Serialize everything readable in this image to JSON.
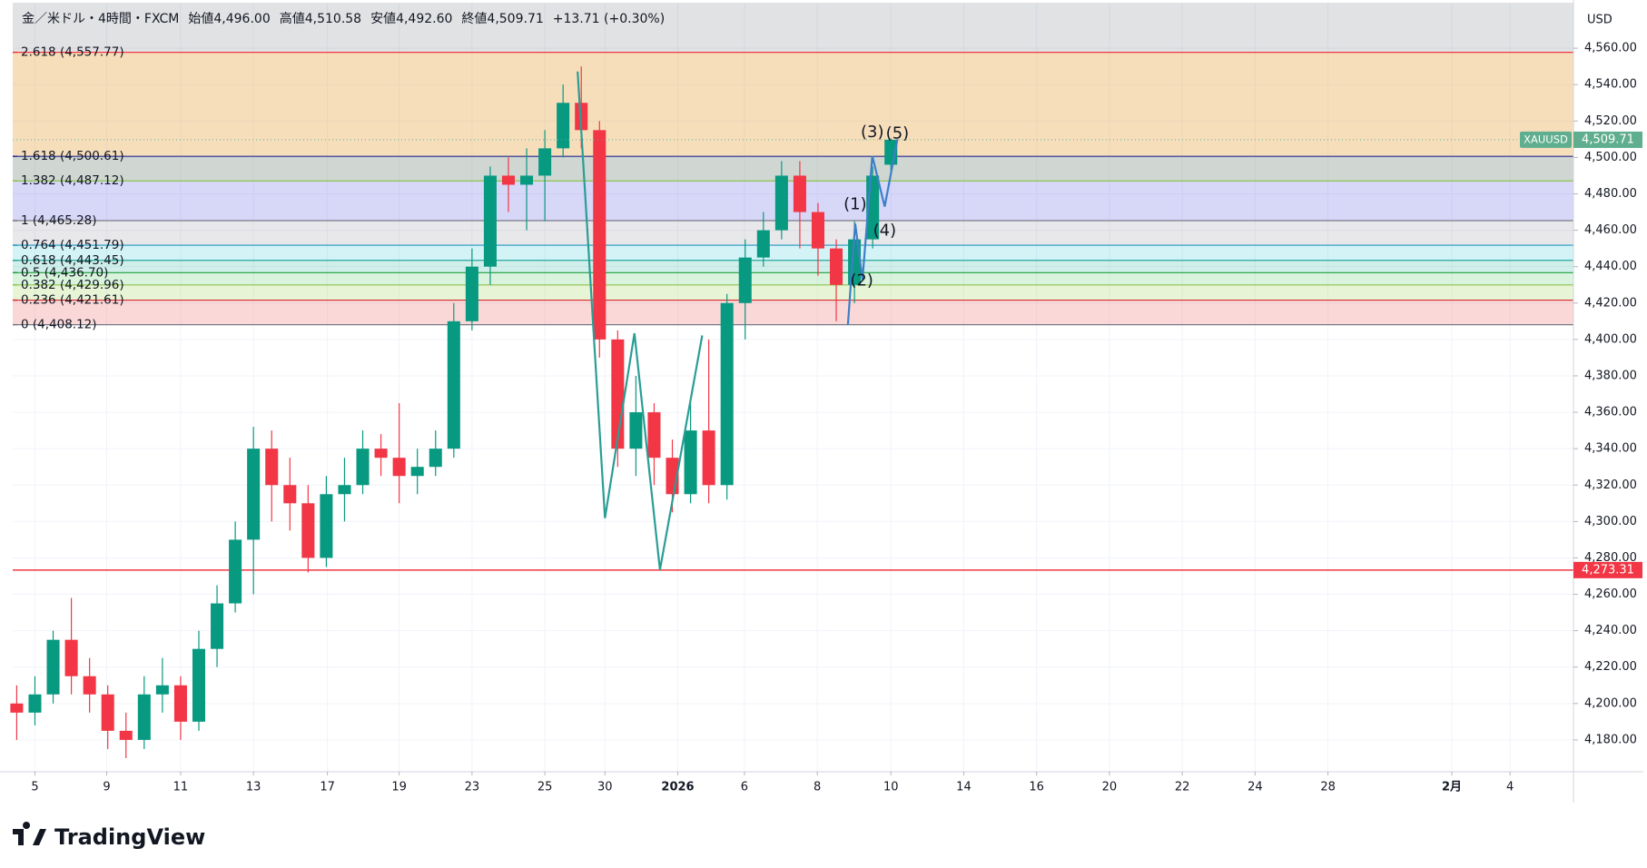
{
  "header": [
    "金／米ドル・4時間・FXCM",
    "始値4,496.00",
    "高値4,510.58",
    "安値4,492.60",
    "終値4,509.71",
    "+13.71 (+0.30%)"
  ],
  "currency": "USD",
  "brand": "TradingView",
  "chart_data": {
    "type": "candlestick",
    "up_color": "#089981",
    "down_color": "#f23645",
    "grid": true,
    "xlim": [
      -0.61,
      42.24
    ],
    "ylim": [
      4162.5,
      4585
    ],
    "xticks": [
      {
        "value": 0,
        "label": "5"
      },
      {
        "value": 1.97,
        "label": "9"
      },
      {
        "value": 4,
        "label": "11"
      },
      {
        "value": 6,
        "label": "13"
      },
      {
        "value": 8.03,
        "label": "17"
      },
      {
        "value": 10,
        "label": "19"
      },
      {
        "value": 12,
        "label": "23"
      },
      {
        "value": 14,
        "label": "25"
      },
      {
        "value": 15.65,
        "label": "30"
      },
      {
        "value": 17.65,
        "label": "2026"
      },
      {
        "value": 19.48,
        "label": "6"
      },
      {
        "value": 21.48,
        "label": "8"
      },
      {
        "value": 23.5,
        "label": "10"
      },
      {
        "value": 25.5,
        "label": "14"
      },
      {
        "value": 27.5,
        "label": "16"
      },
      {
        "value": 29.5,
        "label": "20"
      },
      {
        "value": 31.5,
        "label": "22"
      },
      {
        "value": 33.5,
        "label": "24"
      },
      {
        "value": 35.5,
        "label": "28"
      },
      {
        "value": 38.9,
        "label": "2月"
      },
      {
        "value": 40.5,
        "label": "4"
      }
    ],
    "yticks": [
      {
        "value": 4180,
        "label": "4,180.00"
      },
      {
        "value": 4200,
        "label": "4,200.00"
      },
      {
        "value": 4220,
        "label": "4,220.00"
      },
      {
        "value": 4240,
        "label": "4,240.00"
      },
      {
        "value": 4260,
        "label": "4,260.00"
      },
      {
        "value": 4280,
        "label": "4,280.00"
      },
      {
        "value": 4300,
        "label": "4,300.00"
      },
      {
        "value": 4320,
        "label": "4,320.00"
      },
      {
        "value": 4340,
        "label": "4,340.00"
      },
      {
        "value": 4360,
        "label": "4,360.00"
      },
      {
        "value": 4380,
        "label": "4,380.00"
      },
      {
        "value": 4400,
        "label": "4,400.00"
      },
      {
        "value": 4420,
        "label": "4,420.00"
      },
      {
        "value": 4440,
        "label": "4,440.00"
      },
      {
        "value": 4460,
        "label": "4,460.00"
      },
      {
        "value": 4480,
        "label": "4,480.00"
      },
      {
        "value": 4500,
        "label": "4,500.00"
      },
      {
        "value": 4520,
        "label": "4,520.00"
      },
      {
        "value": 4540,
        "label": "4,540.00"
      },
      {
        "value": 4560,
        "label": "4,560.00"
      }
    ],
    "x": [
      -0.5,
      0,
      0.5,
      1,
      1.5,
      2,
      2.5,
      3,
      3.5,
      4,
      4.5,
      5,
      5.5,
      6,
      6.5,
      7,
      7.5,
      8,
      8.5,
      9,
      9.5,
      10,
      10.5,
      11,
      11.5,
      12,
      12.5,
      13,
      13.5,
      14,
      14.5,
      15,
      15.5,
      16,
      16.5,
      17,
      17.5,
      18,
      18.5,
      19,
      19.5,
      20,
      20.5,
      21,
      21.5,
      22,
      22.5,
      23,
      23.5
    ],
    "open": [
      4200,
      4195,
      4205,
      4235,
      4215,
      4205,
      4185,
      4180,
      4205,
      4210,
      4190,
      4230,
      4255,
      4290,
      4340,
      4320,
      4310,
      4280,
      4315,
      4320,
      4340,
      4335,
      4325,
      4330,
      4340,
      4410,
      4440,
      4490,
      4485,
      4490,
      4505,
      4530,
      4515,
      4400,
      4340,
      4360,
      4335,
      4315,
      4350,
      4320,
      4420,
      4445,
      4460,
      4490,
      4470,
      4450,
      4430,
      4455,
      4496
    ],
    "high": [
      4210,
      4215,
      4240,
      4258,
      4225,
      4210,
      4195,
      4215,
      4225,
      4215,
      4240,
      4265,
      4300,
      4352,
      4350,
      4335,
      4320,
      4325,
      4335,
      4350,
      4348,
      4365,
      4340,
      4350,
      4420,
      4450,
      4495,
      4500,
      4505,
      4515,
      4540,
      4550,
      4520,
      4405,
      4380,
      4365,
      4345,
      4365,
      4400,
      4425,
      4455,
      4470,
      4498,
      4498,
      4475,
      4455,
      4465,
      4495,
      4510.58
    ],
    "low": [
      4180,
      4188,
      4200,
      4205,
      4195,
      4175,
      4170,
      4175,
      4195,
      4180,
      4185,
      4220,
      4250,
      4260,
      4300,
      4295,
      4272,
      4275,
      4300,
      4315,
      4325,
      4310,
      4315,
      4325,
      4335,
      4405,
      4430,
      4470,
      4460,
      4465,
      4500,
      4505,
      4390,
      4330,
      4325,
      4320,
      4305,
      4310,
      4310,
      4312,
      4400,
      4440,
      4455,
      4450,
      4435,
      4410,
      4420,
      4450,
      4492.6
    ],
    "close": [
      4195,
      4205,
      4235,
      4215,
      4205,
      4185,
      4180,
      4205,
      4210,
      4190,
      4230,
      4255,
      4290,
      4340,
      4320,
      4310,
      4280,
      4315,
      4320,
      4340,
      4335,
      4325,
      4330,
      4340,
      4410,
      4440,
      4490,
      4485,
      4490,
      4505,
      4530,
      4515,
      4400,
      4340,
      4360,
      4335,
      4315,
      4350,
      4320,
      4420,
      4445,
      4460,
      4490,
      4470,
      4450,
      4430,
      4455,
      4490,
      4509.71
    ],
    "fib_levels": [
      {
        "label": "2.618 (4,557.77)",
        "value": 4557.77,
        "color": "#f23645",
        "fill": "rgba(120,123,134,0.22)"
      },
      {
        "label": "1.618 (4,500.61)",
        "value": 4500.61,
        "color": "#2a2e8c",
        "fill": "rgba(230,160,60,0.35)"
      },
      {
        "label": "1.382 (4,487.12)",
        "value": 4487.12,
        "color": "#8bc34a",
        "fill": "rgba(120,140,130,0.35)"
      },
      {
        "label": "1 (4,465.28)",
        "value": 4465.28,
        "color": "#787b86",
        "fill": "rgba(110,110,230,0.28)"
      },
      {
        "label": "0.764 (4,451.79)",
        "value": 4451.79,
        "color": "#2196c3",
        "fill": "rgba(150,150,160,0.22)"
      },
      {
        "label": "0.618 (4,443.45)",
        "value": 4443.45,
        "color": "#26a69a",
        "fill": "rgba(60,200,220,0.22)"
      },
      {
        "label": "0.5 (4,436.70)",
        "value": 4436.7,
        "color": "#1b9e3b",
        "fill": "rgba(40,180,160,0.22)"
      },
      {
        "label": "0.382 (4,429.96)",
        "value": 4429.96,
        "color": "#8bc34a",
        "fill": "rgba(80,200,100,0.22)"
      },
      {
        "label": "0.236 (4,421.61)",
        "value": 4421.61,
        "color": "#d32f2f",
        "fill": "rgba(160,210,90,0.25)"
      },
      {
        "label": "0 (4,408.12)",
        "value": 4408.12,
        "color": "#787b86",
        "fill": "rgba(240,100,100,0.25)"
      }
    ],
    "hline": {
      "value": 4273.31,
      "label": "4,273.31",
      "color": "#f23645"
    },
    "last_price": {
      "value": 4509.71,
      "label": "4,509.71",
      "symbol": "XAUUSD",
      "color": "#5fae8f"
    },
    "waves": [
      {
        "color": "#2a9d95",
        "x": [
          14.9,
          15.65,
          16.46,
          17.16,
          18.32
        ],
        "y": [
          4547.2,
          4301.8,
          4403.4,
          4273.4,
          4402.2
        ]
      },
      {
        "color": "#3d7fc6",
        "x": [
          22.32,
          22.52,
          22.72,
          22.99,
          23.33,
          23.68
        ],
        "y": [
          4408,
          4463.7,
          4432.9,
          4500.8,
          4473,
          4510
        ]
      }
    ],
    "wave_labels": [
      {
        "text": "(1)",
        "x": 22.52,
        "y": 4474,
        "color": "#3d7fc6"
      },
      {
        "text": "(2)",
        "x": 22.7,
        "y": 4432,
        "color": "#3d7fc6"
      },
      {
        "text": "(3)",
        "x": 22.99,
        "y": 4513.6,
        "color": "#3d7fc6"
      },
      {
        "text": "(4)",
        "x": 23.33,
        "y": 4459.6,
        "color": "#3d7fc6"
      },
      {
        "text": "(5)",
        "x": 23.68,
        "y": 4513,
        "color": "#3d7fc6"
      }
    ]
  }
}
